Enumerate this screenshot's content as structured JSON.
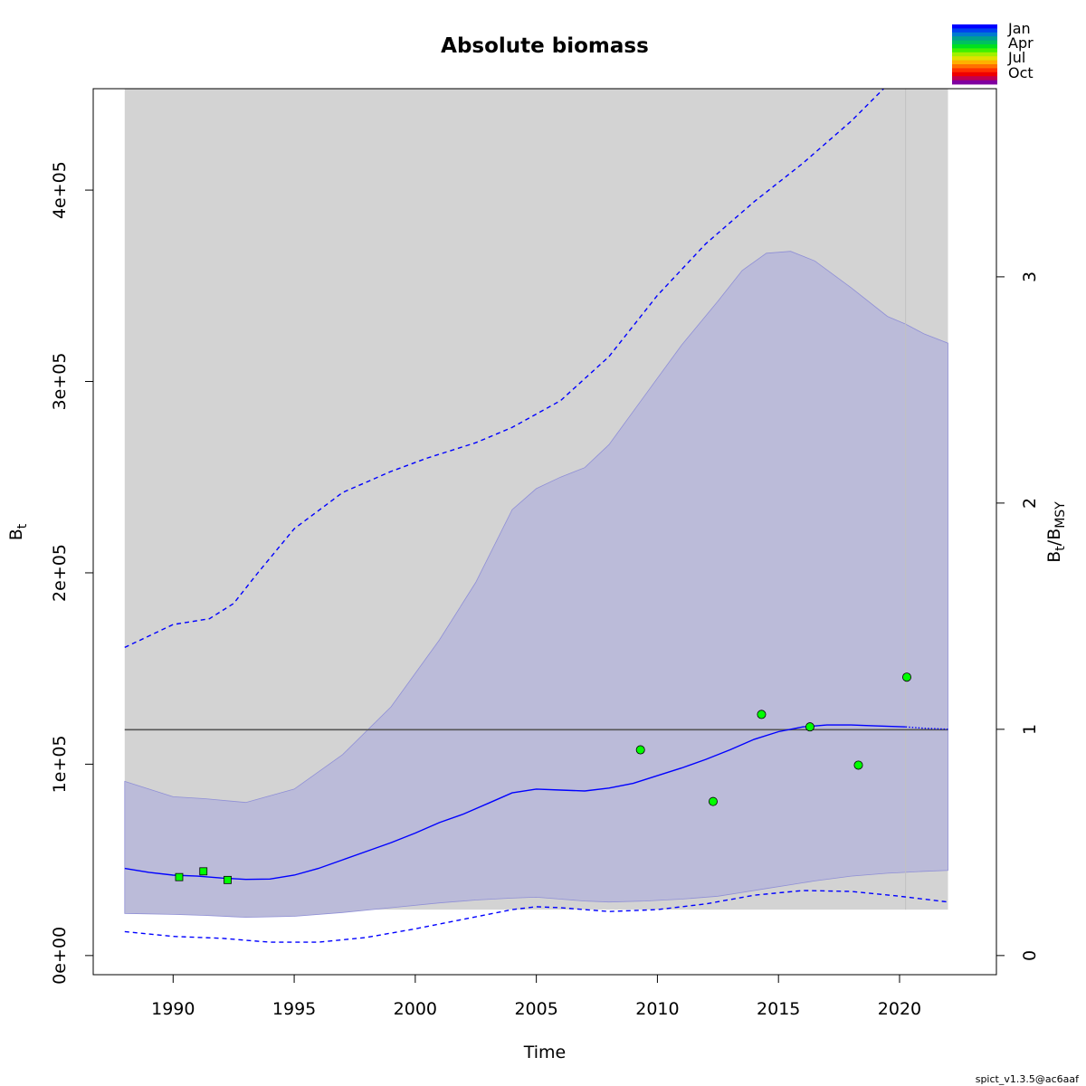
{
  "chart_data": {
    "type": "line",
    "title": "Absolute biomass",
    "xlabel": "Time",
    "ylabel": "B_t",
    "ylabel_main": "B",
    "ylabel_sub": "t",
    "y2label_main": "B",
    "y2label_sub1": "t",
    "y2label_sep": "/B",
    "y2label_sub2": "MSY",
    "xlim": [
      1986.7,
      2024.0
    ],
    "ylim": [
      -10000,
      453000
    ],
    "y2lim": [
      -0.0846,
      3.8316
    ],
    "x_ticks": [
      1990,
      1995,
      2000,
      2005,
      2010,
      2015,
      2020
    ],
    "x_tick_labels": [
      "1990",
      "1995",
      "2000",
      "2005",
      "2010",
      "2015",
      "2020"
    ],
    "y_ticks": [
      0,
      100000,
      200000,
      300000,
      400000
    ],
    "y_tick_labels": [
      "0e+00",
      "1e+05",
      "2e+05",
      "3e+05",
      "4e+05"
    ],
    "y2_ticks": [
      0,
      1,
      2,
      3
    ],
    "y2_tick_labels": [
      "0",
      "1",
      "2",
      "3"
    ],
    "grey_region_x": [
      1988,
      2022
    ],
    "grey_region_bottom": 24000,
    "bmsy": 118000,
    "bmsy_x": [
      1988,
      2022
    ],
    "vline_x": 2020.25,
    "ci_band": {
      "x": [
        1988,
        1990,
        1991.3,
        1993,
        1995,
        1997,
        1999,
        2001,
        2002.5,
        2004,
        2005,
        2006,
        2007,
        2008,
        2009.5,
        2011,
        2012.5,
        2013.5,
        2014.5,
        2015.5,
        2016.5,
        2018,
        2019.5,
        2020.25,
        2021,
        2022
      ],
      "upper": [
        91000,
        83000,
        82000,
        80000,
        87000,
        105000,
        130000,
        165000,
        195000,
        233000,
        244000,
        250000,
        255000,
        267000,
        293000,
        319000,
        342000,
        358000,
        367000,
        368000,
        363000,
        349000,
        334000,
        330000,
        325000,
        320000
      ],
      "lower": [
        22000,
        21500,
        21000,
        20000,
        20500,
        22500,
        25000,
        27500,
        29000,
        30000,
        30500,
        29500,
        28500,
        28000,
        28500,
        29500,
        31000,
        33000,
        35000,
        37000,
        39000,
        41500,
        43000,
        43500,
        44000,
        44500
      ]
    },
    "series": [
      {
        "name": "B_t",
        "color": "#0000ff",
        "style": "solid",
        "x": [
          1988,
          1989,
          1990,
          1991,
          1992,
          1993,
          1994,
          1995,
          1996,
          1997,
          1998,
          1999,
          2000,
          2001,
          2002,
          2003,
          2004,
          2005,
          2006,
          2007,
          2008,
          2009,
          2010,
          2011,
          2012,
          2013,
          2014,
          2015,
          2016,
          2017,
          2018,
          2019,
          2020.25
        ],
        "y": [
          45500,
          43500,
          42000,
          41500,
          40500,
          39800,
          40000,
          42000,
          45500,
          50000,
          54500,
          59000,
          64000,
          69500,
          74000,
          79500,
          85000,
          87000,
          86500,
          86000,
          87500,
          90000,
          94000,
          98000,
          102500,
          107500,
          113000,
          117000,
          119500,
          120500,
          120500,
          120000,
          119500
        ]
      },
      {
        "name": "B_t forecast",
        "color": "#0000ff",
        "style": "dotted",
        "x": [
          2020.25,
          2021,
          2022
        ],
        "y": [
          119500,
          118800,
          118300
        ]
      },
      {
        "name": "B_t upper CI",
        "color": "#0000ff",
        "style": "dashed",
        "x": [
          1988,
          1990,
          1991.5,
          1992.5,
          1993.5,
          1995,
          1997,
          1999,
          2000.5,
          2002.5,
          2004,
          2006,
          2008,
          2010,
          2012,
          2014,
          2016,
          2018,
          2019.5
        ],
        "y": [
          161000,
          173000,
          176000,
          184000,
          200000,
          223000,
          242000,
          253000,
          260000,
          268000,
          276000,
          290000,
          313000,
          345000,
          372000,
          394000,
          414000,
          436000,
          455000
        ]
      },
      {
        "name": "B_t lower CI",
        "color": "#0000ff",
        "style": "dashed",
        "x": [
          1988,
          1990,
          1992,
          1994,
          1996,
          1998,
          2000,
          2002,
          2004,
          2005,
          2006,
          2008,
          2010,
          2012,
          2014,
          2016,
          2018,
          2020,
          2022
        ],
        "y": [
          12500,
          10000,
          9000,
          7000,
          7000,
          9500,
          14000,
          19000,
          24000,
          25500,
          25000,
          23000,
          24000,
          27000,
          31500,
          34000,
          33500,
          31000,
          28000
        ]
      }
    ],
    "index_1": {
      "marker": "square",
      "color": "#00ff00",
      "x": [
        1990.25,
        1991.25,
        1992.25
      ],
      "y": [
        41000,
        44000,
        39500
      ]
    },
    "index_2": {
      "marker": "circle",
      "color": "#00ff00",
      "x": [
        2009.3,
        2012.3,
        2014.3,
        2016.3,
        2018.3,
        2020.3
      ],
      "y": [
        107500,
        80500,
        126000,
        119500,
        99500,
        145500
      ]
    },
    "legend": {
      "placement": "top-right",
      "labels": [
        "Jan",
        "Apr",
        "Jul",
        "Oct"
      ],
      "colors": [
        "#0000ff",
        "#0040f0",
        "#007ad0",
        "#00a090",
        "#00c060",
        "#00e020",
        "#40f000",
        "#a0f000",
        "#e0e000",
        "#ffb000",
        "#ff7000",
        "#ff3000",
        "#f00000",
        "#c00050",
        "#8000a0"
      ]
    },
    "colors": {
      "grey_region": "#d3d3d3",
      "ci_band": "#bbbbd9",
      "ci_band_light": "#ddddf8",
      "bmsy_line": "#555555",
      "vline": "#c0c0c0"
    }
  },
  "footer": "spict_v1.3.5@ac6aaf"
}
